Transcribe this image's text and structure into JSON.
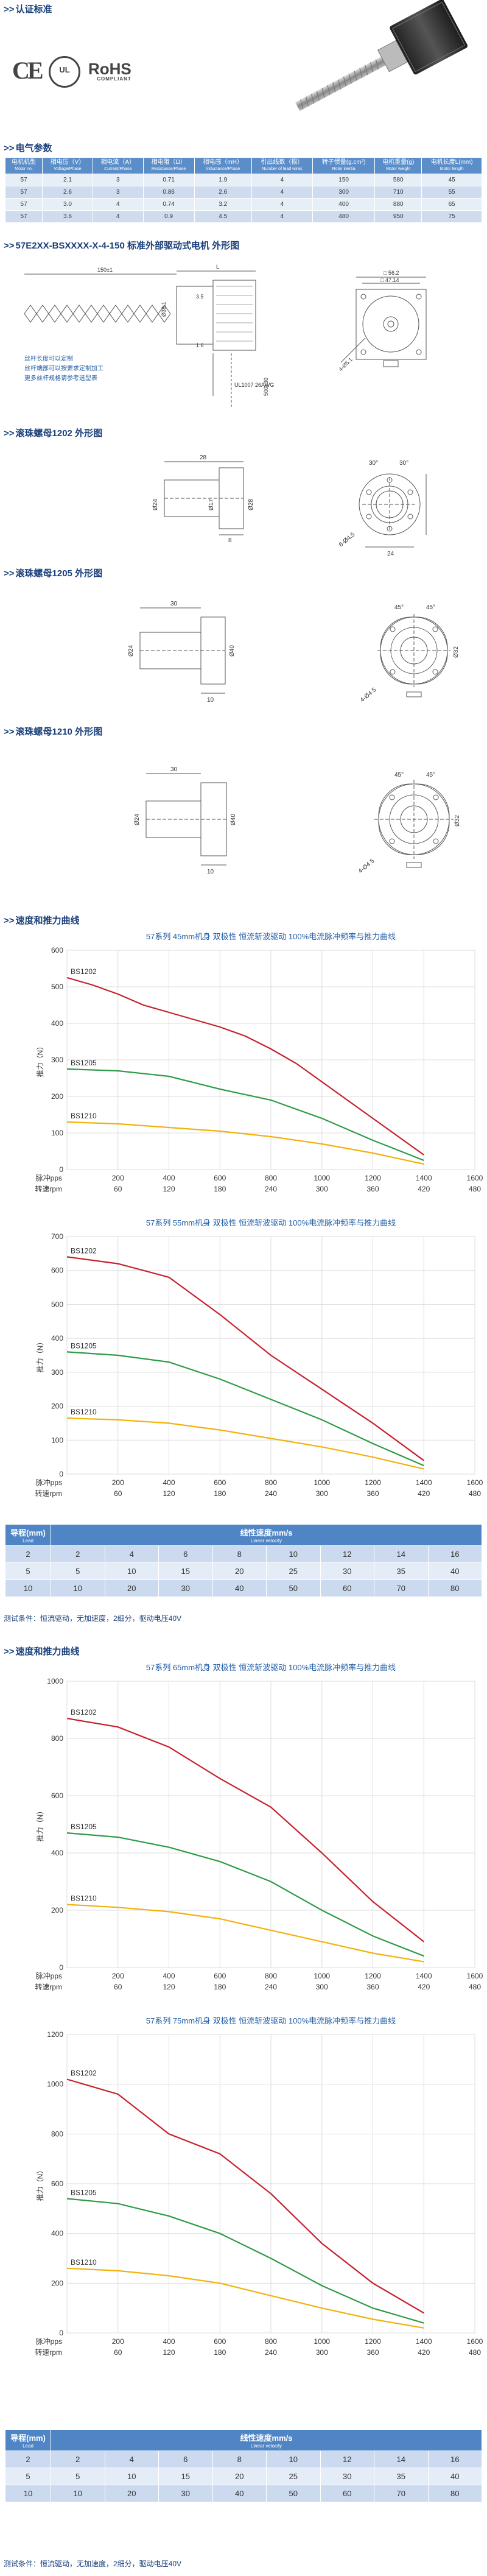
{
  "sections": {
    "cert": "认证标准",
    "electrical": "电气参数",
    "drawing_motor": "57E2XX-BSXXXX-X-4-150 标准外部驱动式电机 外形图",
    "nut_1202": "滚珠螺母1202 外形图",
    "nut_1205": "滚珠螺母1205 外形图",
    "nut_1210": "滚珠螺母1210 外形图",
    "speed_curve_1": "速度和推力曲线",
    "speed_curve_2": "速度和推力曲线"
  },
  "certs": {
    "ce": "CE",
    "ul": "UL",
    "rohs": "RoHS",
    "rohs_sub": "COMPLIANT"
  },
  "spec_table": {
    "headers": [
      {
        "cn": "电机机型",
        "en": "Motor no."
      },
      {
        "cn": "相电压（V）",
        "en": "Voltage/Phase"
      },
      {
        "cn": "相电流（A）",
        "en": "Current/Phase"
      },
      {
        "cn": "相电阻（Ω）",
        "en": "Resistance/Phase"
      },
      {
        "cn": "相电感（mH）",
        "en": "Inductance/Phase"
      },
      {
        "cn": "引出线数（根）",
        "en": "Number of lead wires"
      },
      {
        "cn": "转子惯量(g.cm²)",
        "en": "Rotor inertia"
      },
      {
        "cn": "电机重量(g)",
        "en": "Motor weight"
      },
      {
        "cn": "电机长度L(mm)",
        "en": "Motor length"
      }
    ],
    "rows": [
      [
        "57",
        "2.1",
        "3",
        "0.71",
        "1.9",
        "4",
        "150",
        "580",
        "45"
      ],
      [
        "57",
        "2.6",
        "3",
        "0.86",
        "2.6",
        "4",
        "300",
        "710",
        "55"
      ],
      [
        "57",
        "3.0",
        "4",
        "0.74",
        "3.2",
        "4",
        "400",
        "880",
        "65"
      ],
      [
        "57",
        "3.6",
        "4",
        "0.9",
        "4.5",
        "4",
        "480",
        "950",
        "75"
      ]
    ]
  },
  "drawing1": {
    "dims": [
      "150±1",
      "L",
      "3.5",
      "1.6",
      "Ø38.1",
      "□ 56.2",
      "□ 47.14",
      "4-Ø5.1",
      "UL1007 26AWG",
      "500±30"
    ],
    "notes": [
      "丝杆长度可以定制",
      "丝杆端部可以按要求定制加工",
      "更多丝杆规格请参考选型表"
    ]
  },
  "drawing_1202": {
    "dims": [
      "28",
      "8",
      "Ø28",
      "Ø24",
      "Ø17",
      "30°",
      "30°",
      "6-Ø4.5",
      "24"
    ]
  },
  "drawing_1205": {
    "dims": [
      "30",
      "10",
      "Ø24",
      "Ø40",
      "45°",
      "45°",
      "4-Ø4.5",
      "Ø32"
    ]
  },
  "drawing_1210": {
    "dims": [
      "30",
      "10",
      "Ø24",
      "Ø40",
      "45°",
      "45°",
      "4-Ø4.5",
      "Ø32"
    ]
  },
  "chart_data": [
    {
      "type": "line",
      "title": "57系列 45mm机身 双极性 恒流斩波驱动 100%电流脉冲频率与推力曲线",
      "ylabel": "推力（N）",
      "x_pps": [
        0,
        200,
        400,
        600,
        800,
        1000,
        1200,
        1400,
        1600
      ],
      "x_rpm": [
        0,
        60,
        120,
        180,
        240,
        300,
        360,
        420,
        480
      ],
      "xlabel_pps": "脉冲pps",
      "xlabel_rpm": "转速rpm",
      "ylim": [
        0,
        600
      ],
      "yticks": [
        0,
        100,
        200,
        300,
        400,
        500,
        600
      ],
      "series": [
        {
          "name": "BS1202",
          "color": "#c8202c",
          "x": [
            0,
            100,
            200,
            300,
            400,
            500,
            600,
            700,
            800,
            900,
            1000,
            1100,
            1200,
            1300,
            1400
          ],
          "y": [
            525,
            505,
            480,
            450,
            430,
            410,
            390,
            365,
            330,
            290,
            240,
            190,
            140,
            90,
            40
          ]
        },
        {
          "name": "BS1205",
          "color": "#2e9b48",
          "x": [
            0,
            200,
            400,
            600,
            800,
            1000,
            1200,
            1400
          ],
          "y": [
            275,
            270,
            255,
            220,
            190,
            140,
            80,
            25
          ]
        },
        {
          "name": "BS1210",
          "color": "#f2b20c",
          "x": [
            0,
            200,
            400,
            600,
            800,
            1000,
            1200,
            1400
          ],
          "y": [
            130,
            125,
            115,
            105,
            90,
            70,
            45,
            15
          ]
        }
      ]
    },
    {
      "type": "line",
      "title": "57系列 55mm机身 双极性 恒流斩波驱动 100%电流脉冲频率与推力曲线",
      "ylabel": "推力（N）",
      "x_pps": [
        0,
        200,
        400,
        600,
        800,
        1000,
        1200,
        1400,
        1600
      ],
      "x_rpm": [
        0,
        60,
        120,
        180,
        240,
        300,
        360,
        420,
        480
      ],
      "xlabel_pps": "脉冲pps",
      "xlabel_rpm": "转速rpm",
      "ylim": [
        0,
        700
      ],
      "yticks": [
        0,
        100,
        200,
        300,
        400,
        500,
        600,
        700
      ],
      "series": [
        {
          "name": "BS1202",
          "color": "#c8202c",
          "x": [
            0,
            200,
            400,
            600,
            800,
            1000,
            1200,
            1400
          ],
          "y": [
            640,
            620,
            580,
            470,
            350,
            250,
            150,
            40
          ]
        },
        {
          "name": "BS1205",
          "color": "#2e9b48",
          "x": [
            0,
            200,
            400,
            600,
            800,
            1000,
            1200,
            1400
          ],
          "y": [
            360,
            350,
            330,
            280,
            220,
            160,
            90,
            25
          ]
        },
        {
          "name": "BS1210",
          "color": "#f2b20c",
          "x": [
            0,
            200,
            400,
            600,
            800,
            1000,
            1200,
            1400
          ],
          "y": [
            165,
            160,
            150,
            130,
            105,
            80,
            50,
            15
          ]
        }
      ]
    },
    {
      "type": "line",
      "title": "57系列 65mm机身 双极性 恒流斩波驱动 100%电流脉冲频率与推力曲线",
      "ylabel": "推力（N）",
      "x_pps": [
        0,
        200,
        400,
        600,
        800,
        1000,
        1200,
        1400,
        1600
      ],
      "x_rpm": [
        0,
        60,
        120,
        180,
        240,
        300,
        360,
        420,
        480
      ],
      "xlabel_pps": "脉冲pps",
      "xlabel_rpm": "转速rpm",
      "ylim": [
        0,
        1000
      ],
      "yticks": [
        0,
        200,
        400,
        600,
        800,
        1000
      ],
      "series": [
        {
          "name": "BS1202",
          "color": "#c8202c",
          "x": [
            0,
            200,
            400,
            600,
            800,
            1000,
            1200,
            1400
          ],
          "y": [
            870,
            840,
            770,
            660,
            560,
            400,
            230,
            90
          ]
        },
        {
          "name": "BS1205",
          "color": "#2e9b48",
          "x": [
            0,
            200,
            400,
            600,
            800,
            1000,
            1200,
            1400
          ],
          "y": [
            470,
            455,
            420,
            370,
            300,
            200,
            110,
            40
          ]
        },
        {
          "name": "BS1210",
          "color": "#f2b20c",
          "x": [
            0,
            200,
            400,
            600,
            800,
            1000,
            1200,
            1400
          ],
          "y": [
            220,
            210,
            195,
            170,
            130,
            90,
            50,
            20
          ]
        }
      ]
    },
    {
      "type": "line",
      "title": "57系列 75mm机身 双极性 恒流斩波驱动 100%电流脉冲频率与推力曲线",
      "ylabel": "推力（N）",
      "x_pps": [
        0,
        200,
        400,
        600,
        800,
        1000,
        1200,
        1400,
        1600
      ],
      "x_rpm": [
        0,
        60,
        120,
        180,
        240,
        300,
        360,
        420,
        480
      ],
      "xlabel_pps": "脉冲pps",
      "xlabel_rpm": "转速rpm",
      "ylim": [
        0,
        1200
      ],
      "yticks": [
        0,
        200,
        400,
        600,
        800,
        1000,
        1200
      ],
      "series": [
        {
          "name": "BS1202",
          "color": "#c8202c",
          "x": [
            0,
            200,
            400,
            600,
            800,
            1000,
            1200,
            1400
          ],
          "y": [
            1020,
            960,
            800,
            720,
            560,
            360,
            200,
            80
          ]
        },
        {
          "name": "BS1205",
          "color": "#2e9b48",
          "x": [
            0,
            200,
            400,
            600,
            800,
            1000,
            1200,
            1400
          ],
          "y": [
            540,
            520,
            470,
            400,
            300,
            190,
            100,
            40
          ]
        },
        {
          "name": "BS1210",
          "color": "#f2b20c",
          "x": [
            0,
            200,
            400,
            600,
            800,
            1000,
            1200,
            1400
          ],
          "y": [
            260,
            250,
            230,
            200,
            150,
            100,
            55,
            20
          ]
        }
      ]
    }
  ],
  "speed_table": {
    "head_lead": "导程(mm)",
    "head_lead_en": "Lead",
    "head_speed": "线性速度mm/s",
    "head_speed_en": "Linear velocity",
    "rows": [
      [
        "2",
        "2",
        "4",
        "6",
        "8",
        "10",
        "12",
        "14",
        "16"
      ],
      [
        "5",
        "5",
        "10",
        "15",
        "20",
        "25",
        "30",
        "35",
        "40"
      ],
      [
        "10",
        "10",
        "20",
        "30",
        "40",
        "50",
        "60",
        "70",
        "80"
      ]
    ],
    "note": "测试条件：恒流驱动，无加速度，2细分，驱动电压40V"
  }
}
